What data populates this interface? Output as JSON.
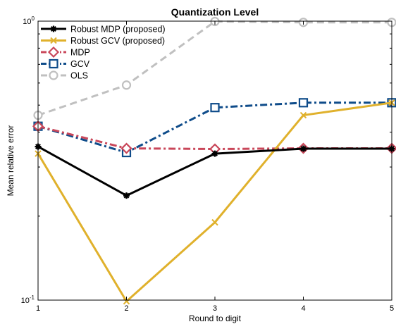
{
  "chart_data": {
    "type": "line",
    "title": "Quantization Level",
    "xlabel": "Round to digit",
    "ylabel": "Mean relative error",
    "x": [
      1,
      2,
      3,
      4,
      5
    ],
    "xlim": [
      1,
      5
    ],
    "ylim": [
      0.1,
      1
    ],
    "yscale": "log",
    "grid": false,
    "legend_position": "top-left",
    "x_tick_labels": [
      "1",
      "2",
      "3",
      "4",
      "5"
    ],
    "y_tick_labels": [
      {
        "base": "10",
        "exp": "-1",
        "value": 0.1
      },
      {
        "base": "10",
        "exp": "0",
        "value": 1
      }
    ],
    "series": [
      {
        "name": "Robust MDP (proposed)",
        "values": [
          0.355,
          0.237,
          0.335,
          0.349,
          0.349
        ],
        "color": "#000000",
        "marker": "asterisk",
        "dash": "solid"
      },
      {
        "name": "Robust GCV (proposed)",
        "values": [
          0.335,
          0.099,
          0.19,
          0.46,
          0.51
        ],
        "color": "#E0B12C",
        "marker": "x",
        "dash": "solid"
      },
      {
        "name": "MDP",
        "values": [
          0.42,
          0.35,
          0.348,
          0.35,
          0.35
        ],
        "color": "#C9475A",
        "marker": "diamond",
        "dash": "dashdot"
      },
      {
        "name": "GCV",
        "values": [
          0.42,
          0.338,
          0.49,
          0.51,
          0.51
        ],
        "color": "#0F4C8A",
        "marker": "square",
        "dash": "dashdot"
      },
      {
        "name": "OLS",
        "values": [
          0.46,
          0.59,
          0.997,
          0.99,
          0.99
        ],
        "color": "#C0C0C0",
        "marker": "circle",
        "dash": "dashed"
      }
    ]
  }
}
